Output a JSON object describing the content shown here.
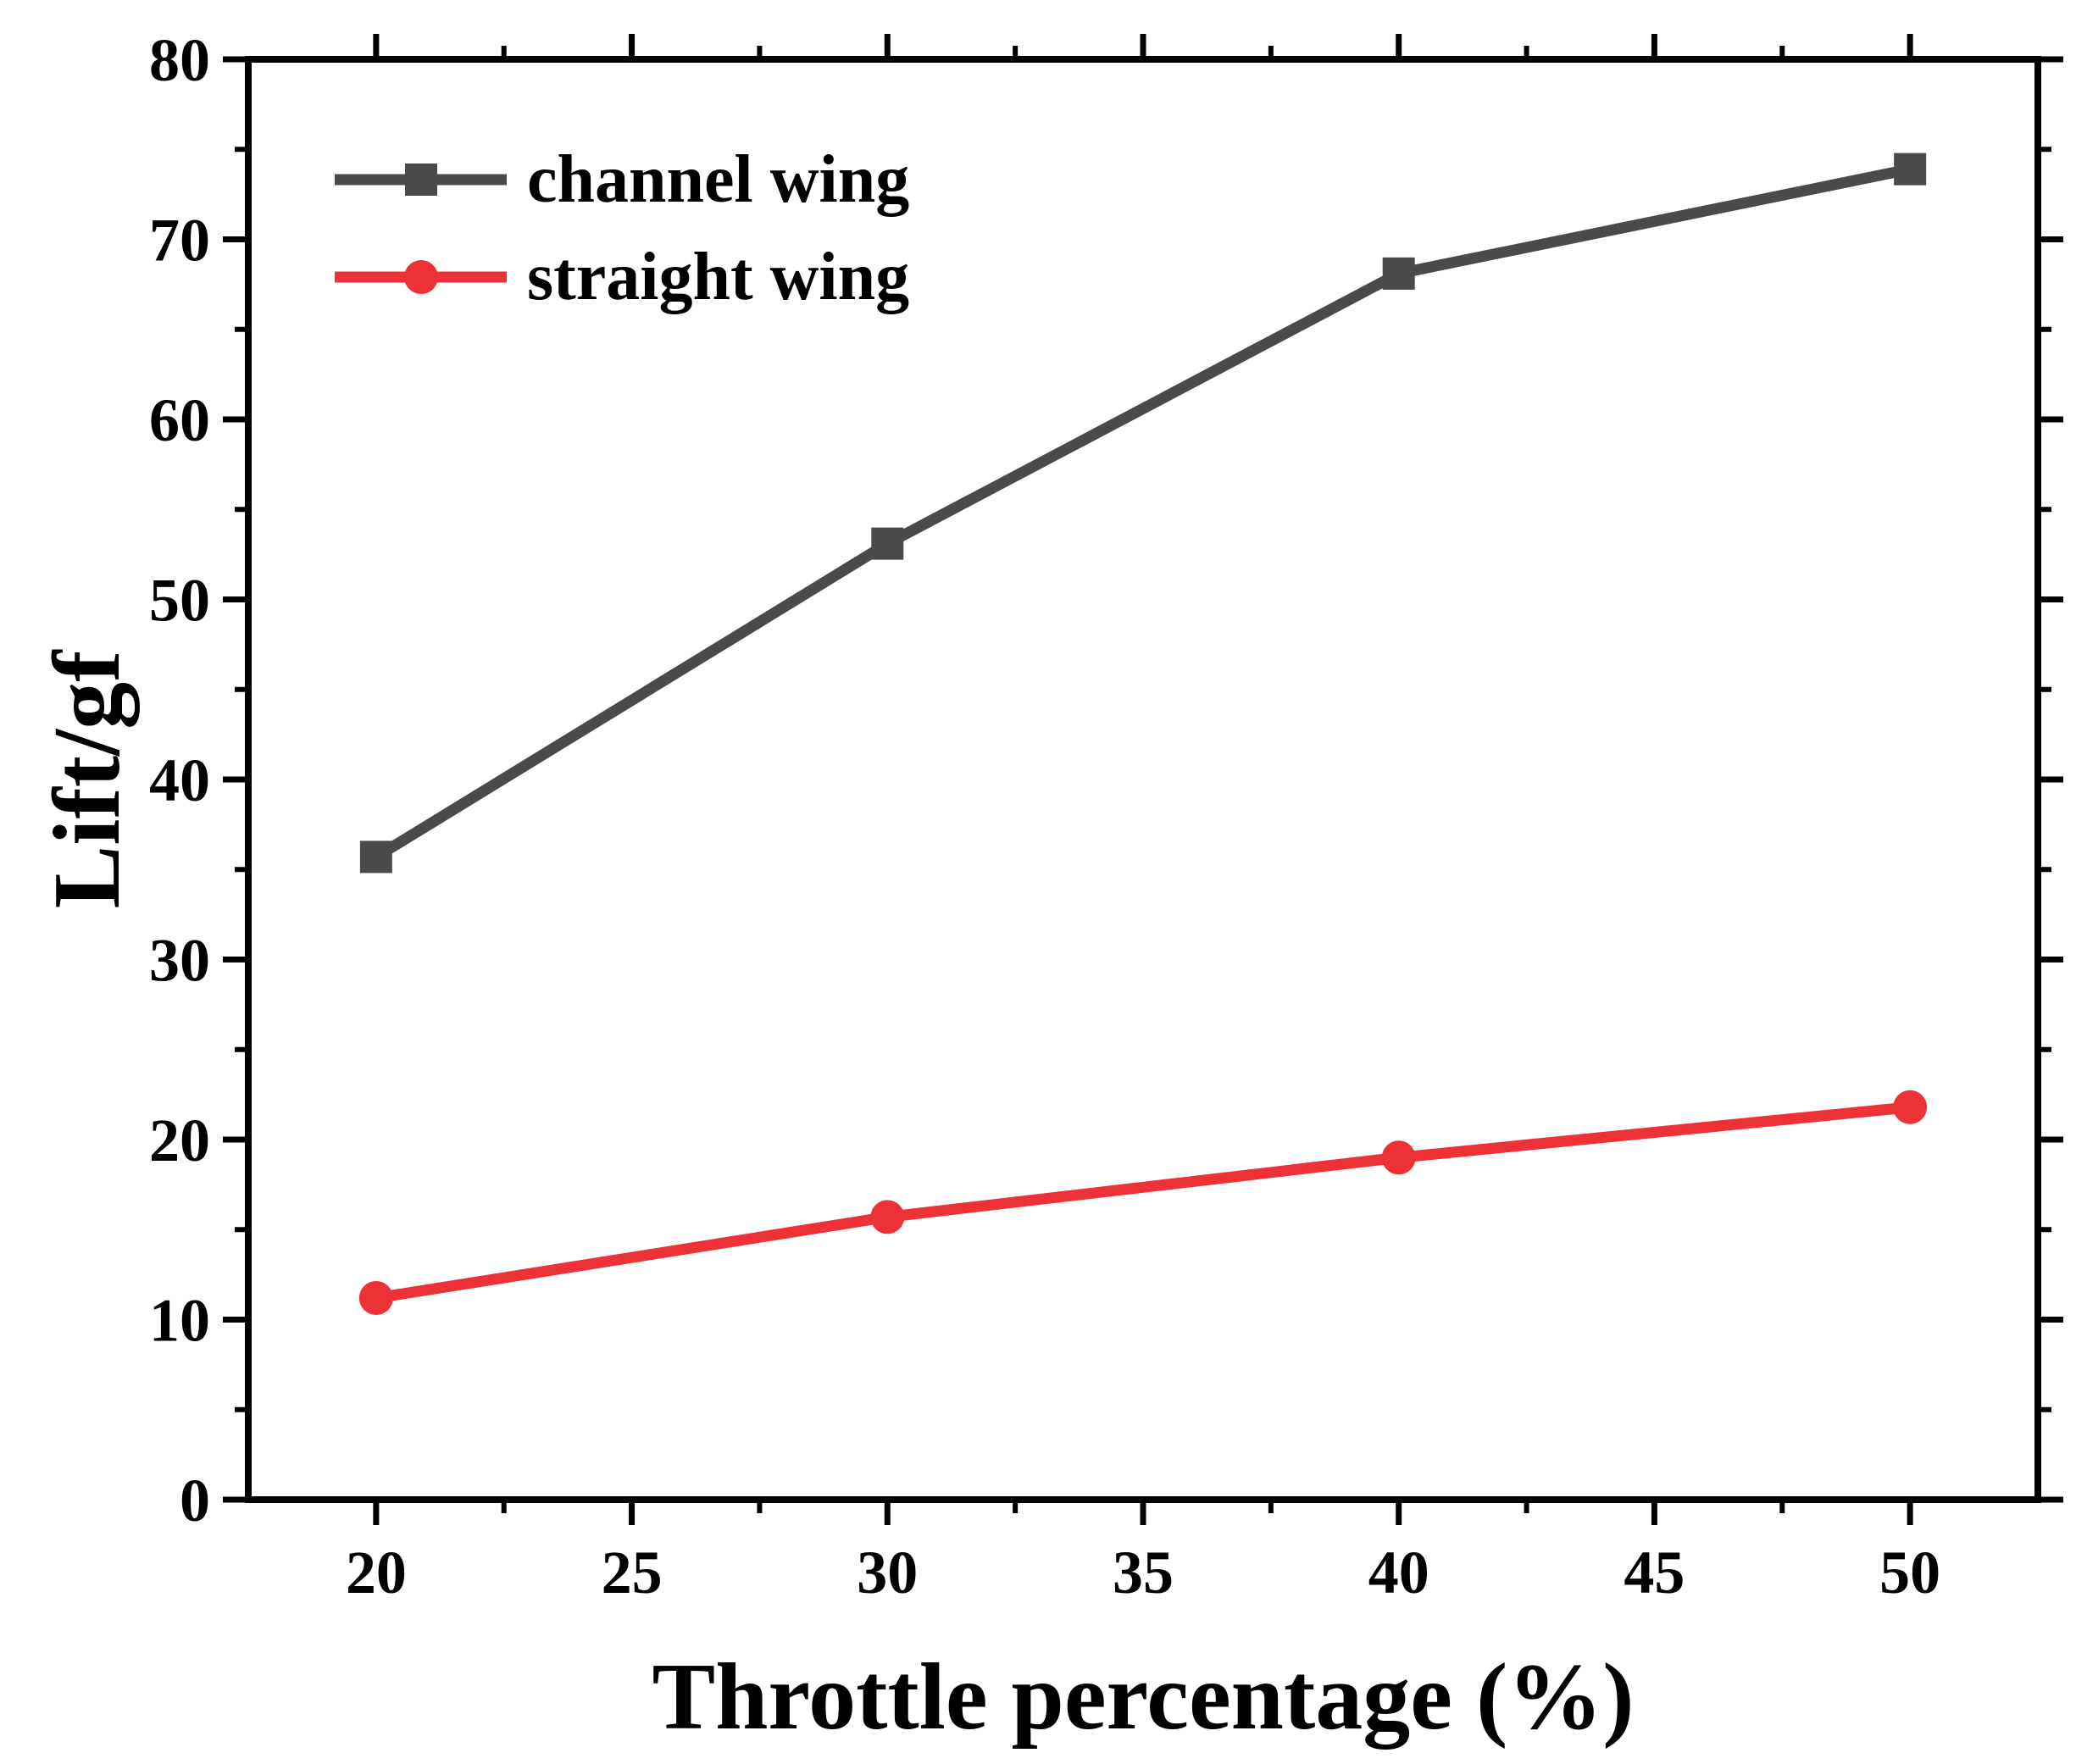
{
  "chart_data": {
    "type": "line",
    "title": "",
    "xlabel": "Throttle percentage (%)",
    "ylabel": "Lift/gf",
    "x": [
      20,
      30,
      40,
      50
    ],
    "xlim": [
      17.5,
      52.5
    ],
    "ylim": [
      0,
      80
    ],
    "xticks": [
      20,
      25,
      30,
      35,
      40,
      45,
      50
    ],
    "yticks": [
      0,
      10,
      20,
      30,
      40,
      50,
      60,
      70,
      80
    ],
    "grid": false,
    "legend_position": "top-left",
    "series": [
      {
        "name": "channel wing",
        "values": [
          35.7,
          53.1,
          68.1,
          73.9
        ],
        "color": "#4a4a4a",
        "marker": "square"
      },
      {
        "name": "straight wing",
        "values": [
          11.2,
          15.7,
          19.0,
          21.8
        ],
        "color": "#ec3237",
        "marker": "circle"
      }
    ]
  }
}
